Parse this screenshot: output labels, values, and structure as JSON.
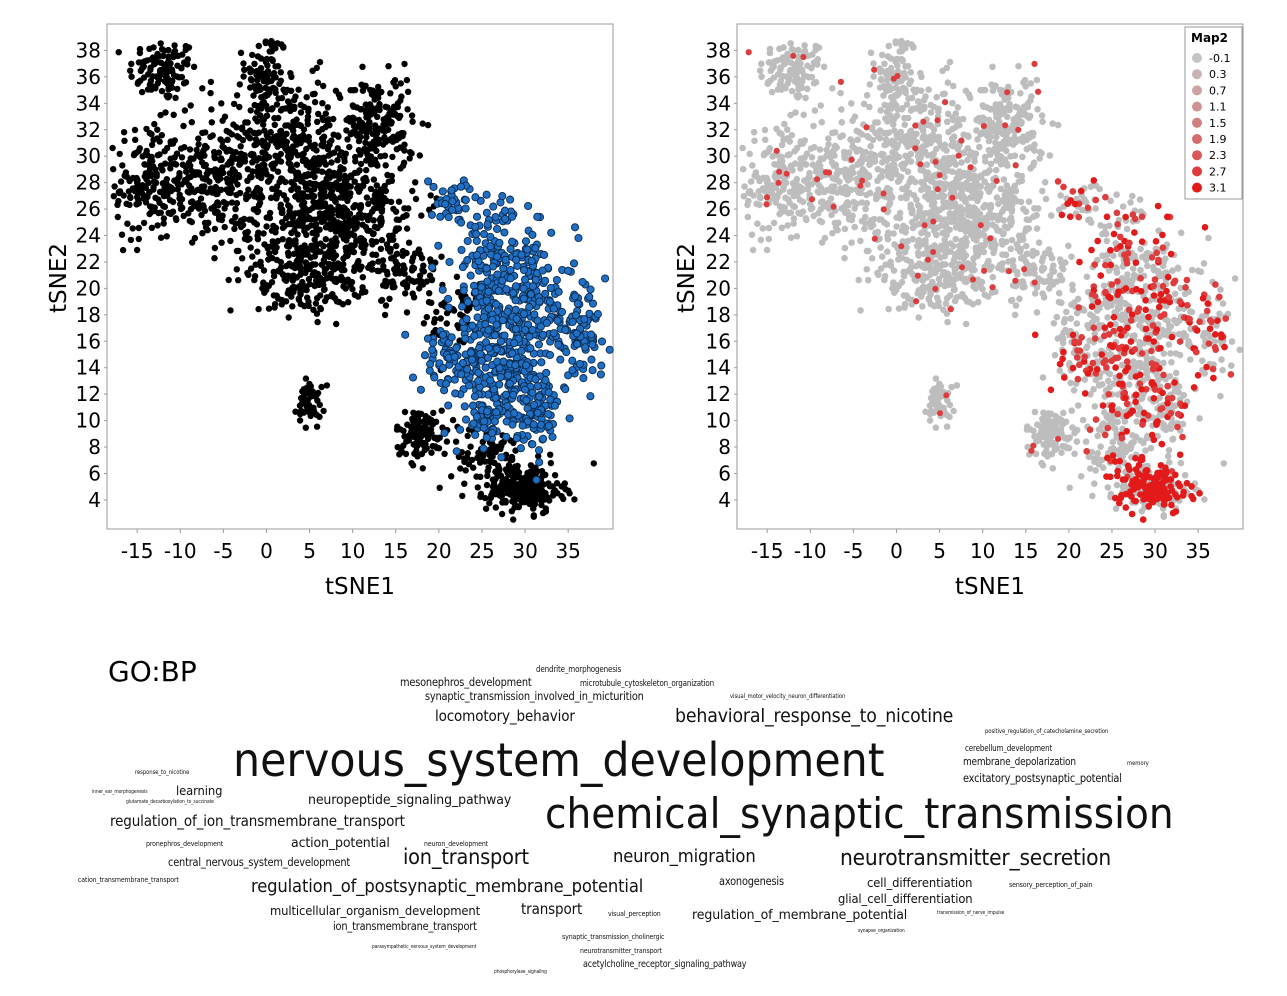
{
  "chart_data": [
    {
      "type": "scatter",
      "title": "",
      "xlabel": "tSNE1",
      "ylabel": "tSNE2",
      "xlim": [
        -18.5,
        40.2
      ],
      "ylim": [
        1.8,
        40
      ],
      "x_ticks": [
        -15,
        -10,
        -5,
        0,
        5,
        10,
        15,
        20,
        25,
        30,
        35
      ],
      "y_ticks": [
        4,
        6,
        8,
        10,
        12,
        14,
        16,
        18,
        20,
        22,
        24,
        26,
        28,
        30,
        32,
        34,
        36,
        38
      ],
      "grid": false,
      "series": [
        {
          "color": "#000000",
          "clusters": [
            {
              "x": -12,
              "y": 36.5,
              "sx": 2.0,
              "sy": 1.2,
              "n": 110
            },
            {
              "x": 0,
              "y": 36,
              "sx": 1.2,
              "sy": 1.8,
              "n": 90
            },
            {
              "x": -13.5,
              "y": 28,
              "sx": 2.0,
              "sy": 2.2,
              "n": 180
            },
            {
              "x": -6,
              "y": 28,
              "sx": 2.8,
              "sy": 1.8,
              "n": 180
            },
            {
              "x": 2,
              "y": 31,
              "sx": 4.5,
              "sy": 2.5,
              "n": 320
            },
            {
              "x": 5,
              "y": 25,
              "sx": 4.5,
              "sy": 2.8,
              "n": 380
            },
            {
              "x": 11,
              "y": 26,
              "sx": 3.5,
              "sy": 3.0,
              "n": 260
            },
            {
              "x": 13,
              "y": 32.5,
              "sx": 2.0,
              "sy": 1.8,
              "n": 150
            },
            {
              "x": 4,
              "y": 21,
              "sx": 2.8,
              "sy": 1.5,
              "n": 130
            },
            {
              "x": 16,
              "y": 21,
              "sx": 2.0,
              "sy": 1.2,
              "n": 80
            },
            {
              "x": 22,
              "y": 18,
              "sx": 1.5,
              "sy": 1.6,
              "n": 50
            },
            {
              "x": 5,
              "y": 11.5,
              "sx": 0.7,
              "sy": 1.0,
              "n": 50
            },
            {
              "x": 18,
              "y": 9,
              "sx": 1.5,
              "sy": 0.9,
              "n": 110
            },
            {
              "x": 26,
              "y": 7,
              "sx": 2.2,
              "sy": 1.2,
              "n": 90
            },
            {
              "x": 30,
              "y": 4.8,
              "sx": 2.2,
              "sy": 0.9,
              "n": 220
            }
          ]
        },
        {
          "color": "#1f6fc4",
          "clusters": [
            {
              "x": 22,
              "y": 26.5,
              "sx": 1.5,
              "sy": 1.0,
              "n": 40
            },
            {
              "x": 26,
              "y": 21,
              "sx": 2.2,
              "sy": 2.8,
              "n": 190
            },
            {
              "x": 31,
              "y": 19,
              "sx": 2.5,
              "sy": 2.5,
              "n": 150
            },
            {
              "x": 36,
              "y": 16.5,
              "sx": 1.8,
              "sy": 1.5,
              "n": 90
            },
            {
              "x": 21.5,
              "y": 14.5,
              "sx": 1.8,
              "sy": 1.2,
              "n": 70
            },
            {
              "x": 27,
              "y": 14,
              "sx": 2.2,
              "sy": 2.0,
              "n": 170
            },
            {
              "x": 31,
              "y": 11,
              "sx": 1.6,
              "sy": 1.6,
              "n": 110
            },
            {
              "x": 26,
              "y": 10,
              "sx": 1.6,
              "sy": 1.0,
              "n": 50
            }
          ]
        }
      ]
    },
    {
      "type": "scatter",
      "title": "",
      "xlabel": "tSNE1",
      "ylabel": "tSNE2",
      "xlim": [
        -18.5,
        40.2
      ],
      "ylim": [
        1.8,
        40
      ],
      "x_ticks": [
        -15,
        -10,
        -5,
        0,
        5,
        10,
        15,
        20,
        25,
        30,
        35
      ],
      "y_ticks": [
        4,
        6,
        8,
        10,
        12,
        14,
        16,
        18,
        20,
        22,
        24,
        26,
        28,
        30,
        32,
        34,
        36,
        38
      ],
      "grid": false,
      "legend": {
        "title": "Map2",
        "placement": "top-right",
        "entries": [
          {
            "label": "-0.1",
            "color": "#c4c4c4"
          },
          {
            "label": "0.3",
            "color": "#c9b3b3"
          },
          {
            "label": "0.7",
            "color": "#cca2a2"
          },
          {
            "label": "1.1",
            "color": "#cf9191"
          },
          {
            "label": "1.5",
            "color": "#d27f7f"
          },
          {
            "label": "1.9",
            "color": "#d66b6b"
          },
          {
            "label": "2.3",
            "color": "#da5555"
          },
          {
            "label": "2.7",
            "color": "#de3c3c"
          },
          {
            "label": "3.1",
            "color": "#e31a1a"
          }
        ]
      },
      "series": [
        {
          "color": "#bdbdbd",
          "clusters": "same as black series"
        },
        {
          "color": "#d22b2b",
          "clusters": "high Map2 within blue region"
        }
      ]
    }
  ],
  "wordcloud": {
    "title": "GO:BP",
    "words": [
      {
        "text": "dendrite_morphogenesis",
        "size": 8
      },
      {
        "text": "mesonephros_development",
        "size": 11
      },
      {
        "text": "microtubule_cytoskeleton_organization",
        "size": 8
      },
      {
        "text": "synaptic_transmission_involved_in_micturition",
        "size": 11
      },
      {
        "text": "visual_motor_velocity_neuron_differentiation",
        "size": 6
      },
      {
        "text": "locomotory_behavior",
        "size": 14
      },
      {
        "text": "behavioral_response_to_nicotine",
        "size": 18
      },
      {
        "text": "positive_regulation_of_catecholamine_secretion",
        "size": 6
      },
      {
        "text": "nervous_system_development",
        "size": 46
      },
      {
        "text": "cerebellum_development",
        "size": 8
      },
      {
        "text": "membrane_depolarization",
        "size": 10
      },
      {
        "text": "memory",
        "size": 6
      },
      {
        "text": "response_to_nicotine",
        "size": 6
      },
      {
        "text": "excitatory_postsynaptic_potential",
        "size": 11
      },
      {
        "text": "inner_ear_morphogenesis",
        "size": 5
      },
      {
        "text": "learning",
        "size": 12
      },
      {
        "text": "glutamate_decarboxylation_to_succinate",
        "size": 5
      },
      {
        "text": "neuropeptide_signaling_pathway",
        "size": 13
      },
      {
        "text": "chemical_synaptic_transmission",
        "size": 42
      },
      {
        "text": "regulation_of_ion_transmembrane_transport",
        "size": 14
      },
      {
        "text": "pronephros_development",
        "size": 7
      },
      {
        "text": "action_potential",
        "size": 13
      },
      {
        "text": "neuron_development",
        "size": 7
      },
      {
        "text": "central_nervous_system_development",
        "size": 11
      },
      {
        "text": "ion_transport",
        "size": 20
      },
      {
        "text": "neuron_migration",
        "size": 17
      },
      {
        "text": "neurotransmitter_secretion",
        "size": 21
      },
      {
        "text": "cation_transmembrane_transport",
        "size": 7
      },
      {
        "text": "regulation_of_postsynaptic_membrane_potential",
        "size": 17
      },
      {
        "text": "axonogenesis",
        "size": 11
      },
      {
        "text": "cell_differentiation",
        "size": 12
      },
      {
        "text": "sensory_perception_of_pain",
        "size": 7
      },
      {
        "text": "glial_cell_differentiation",
        "size": 12
      },
      {
        "text": "multicellular_organism_development",
        "size": 12
      },
      {
        "text": "transport",
        "size": 14
      },
      {
        "text": "visual_perception",
        "size": 7
      },
      {
        "text": "regulation_of_membrane_potential",
        "size": 13
      },
      {
        "text": "transmission_of_nerve_impulse",
        "size": 5
      },
      {
        "text": "synapse_organization",
        "size": 5
      },
      {
        "text": "ion_transmembrane_transport",
        "size": 11
      },
      {
        "text": "synaptic_transmission_cholinergic",
        "size": 7
      },
      {
        "text": "parasympathetic_nervous_system_development",
        "size": 5
      },
      {
        "text": "neurotransmitter_transport",
        "size": 7
      },
      {
        "text": "acetylcholine_receptor_signaling_pathway",
        "size": 9
      },
      {
        "text": "phosphorylase_signaling",
        "size": 5
      }
    ]
  }
}
